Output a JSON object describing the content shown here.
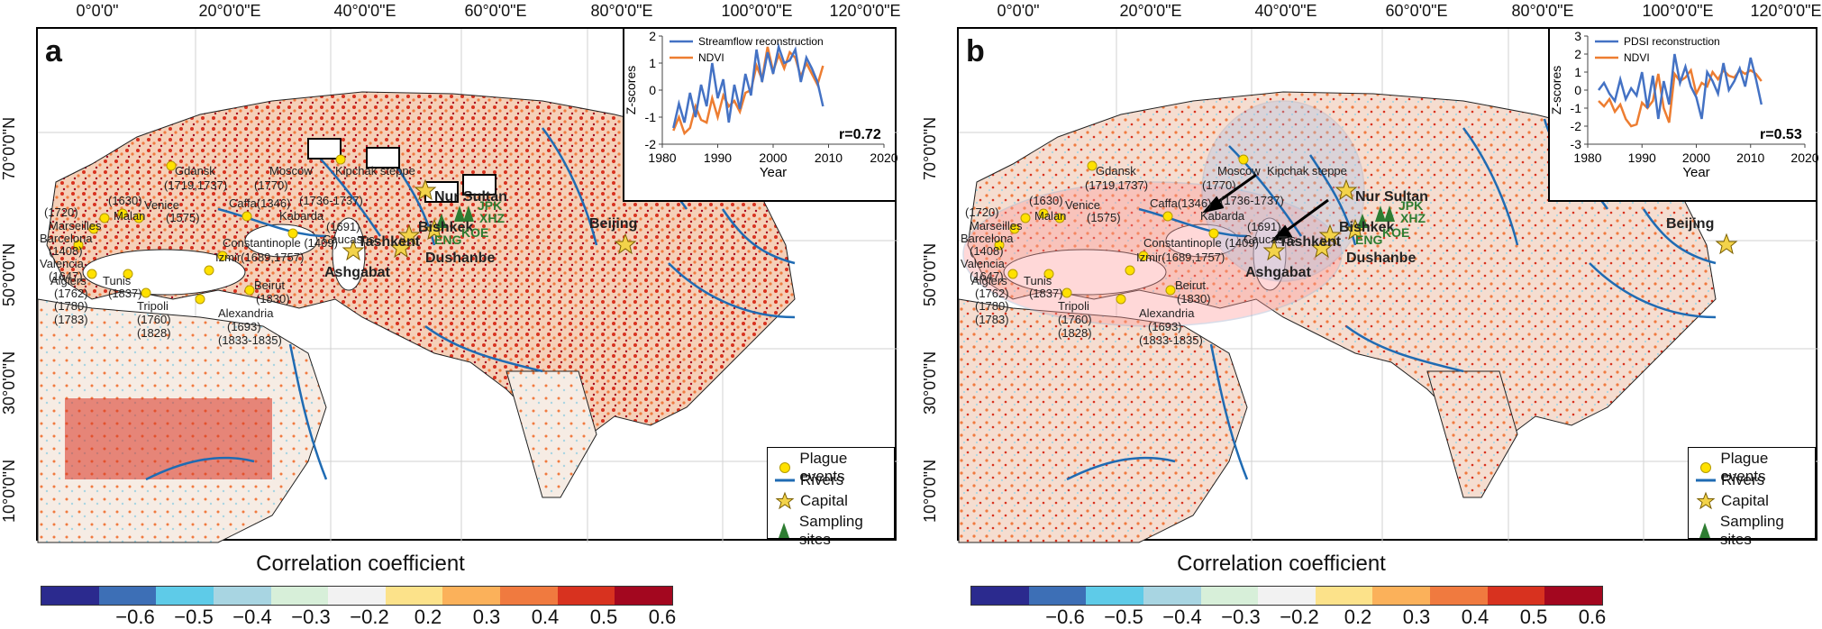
{
  "colors": {
    "colorbar": [
      "#2b2a8e",
      "#3d6fb6",
      "#5ecbe8",
      "#a8d5e2",
      "#d7efd9",
      "#f2f2f2",
      "#fce28a",
      "#fbb15a",
      "#f07a3f",
      "#d8321f",
      "#a3071f"
    ],
    "streamflow_line": "#4472c4",
    "ndvi_line": "#ed7d31",
    "river": "#1f6bb3",
    "plague_dot": "#ffe100",
    "capital_star": "#f3d34a",
    "site_marker": "#2e7d32"
  },
  "axes": {
    "longitude_labels": [
      "0°0'0\"",
      "20°0'0\"E",
      "40°0'0\"E",
      "60°0'0\"E",
      "80°0'0\"E",
      "100°0'0\"E",
      "120°0'0\"E"
    ],
    "latitude_labels": [
      "70°0'0\"N",
      "50°0'0\"N",
      "30°0'0\"N",
      "10°0'0\"N"
    ]
  },
  "legend": {
    "plague": "Plague events",
    "rivers": "Rivers",
    "capital": "Capital",
    "sites": "Sampling sites"
  },
  "colorbar": {
    "title": "Correlation coefficient",
    "ticks": [
      "−0.6",
      "−0.5",
      "−0.4",
      "−0.3",
      "−0.2",
      "0.2",
      "0.3",
      "0.4",
      "0.5",
      "0.6"
    ]
  },
  "panels": [
    {
      "letter": "a",
      "inset_legend": [
        "Streamflow reconstruction",
        "NDVI"
      ],
      "inset_r": "r=0.72",
      "inset_xlabel": "Year",
      "inset_ylabel": "Z-scores"
    },
    {
      "letter": "b",
      "inset_legend": [
        "PDSI reconstruction",
        "NDVI"
      ],
      "inset_r": "r=0.53",
      "inset_xlabel": "Year",
      "inset_ylabel": "Z-scores"
    }
  ],
  "places": {
    "cities": [
      "Gdansk",
      "(1719,1737)",
      "Moscow",
      "(1770)",
      "Kipchak steppe",
      "(1630)",
      "Venice",
      "(1575)",
      "Malan",
      "Caffa(1346)",
      "(1736-1737)",
      "Kabarda",
      "(1720)",
      "Marseilles",
      "Barcelona",
      "(1408)",
      "Valencia",
      "(1647)",
      "(1691)",
      "Caucasus",
      "Constantinople (1409)",
      "Izmir(1689,1757)",
      "Algiers",
      "(1762)",
      "(1780)",
      "(1783)",
      "Tunis",
      "(1837)",
      "Tripoli",
      "(1760)",
      "(1828)",
      "Alexandria",
      "(1693)",
      "(1833-1835)",
      "Beirut",
      "(1830)"
    ],
    "capitals": [
      "Nur Sultan",
      "Bishkek",
      "Tashkent",
      "Dushanbe",
      "Ashgabat",
      "Beijing"
    ],
    "sites": [
      "JPK",
      "XHZ",
      "ENG",
      "KOE"
    ]
  },
  "chart_data": [
    {
      "type": "line",
      "x": [
        1982,
        1983,
        1984,
        1985,
        1986,
        1987,
        1988,
        1989,
        1990,
        1991,
        1992,
        1993,
        1994,
        1995,
        1996,
        1997,
        1998,
        1999,
        2000,
        2001,
        2002,
        2003,
        2004,
        2005,
        2006,
        2007,
        2008,
        2009
      ],
      "series": [
        {
          "name": "Streamflow reconstruction",
          "values": [
            -1.4,
            -0.5,
            -1.2,
            -0.1,
            -1.0,
            0.2,
            -0.6,
            1.0,
            -0.3,
            0.4,
            -1.2,
            0.2,
            -0.7,
            0.6,
            -0.2,
            1.5,
            0.3,
            1.4,
            0.6,
            1.6,
            1.0,
            1.1,
            1.5,
            0.3,
            1.2,
            0.8,
            0.3,
            -0.6
          ]
        },
        {
          "name": "NDVI",
          "values": [
            -1.5,
            -1.0,
            -1.6,
            -1.4,
            -0.6,
            -1.1,
            -1.2,
            -0.3,
            -1.0,
            -0.2,
            -0.6,
            -0.4,
            -0.8,
            -0.1,
            0.0,
            0.9,
            0.4,
            1.6,
            0.7,
            1.3,
            0.8,
            1.4,
            1.2,
            0.5,
            1.0,
            0.6,
            0.2,
            0.9
          ]
        }
      ],
      "xlim": [
        1980,
        2020
      ],
      "ylim": [
        -2,
        2
      ],
      "xticks": [
        1980,
        1990,
        2000,
        2010,
        2020
      ],
      "yticks": [
        -2,
        -1,
        0,
        1,
        2
      ],
      "xlabel": "Year",
      "ylabel": "Z-scores",
      "annotation": "r=0.72"
    },
    {
      "type": "line",
      "x": [
        1982,
        1983,
        1984,
        1985,
        1986,
        1987,
        1988,
        1989,
        1990,
        1991,
        1992,
        1993,
        1994,
        1995,
        1996,
        1997,
        1998,
        1999,
        2000,
        2001,
        2002,
        2003,
        2004,
        2005,
        2006,
        2007,
        2008,
        2009,
        2010,
        2011,
        2012
      ],
      "series": [
        {
          "name": "PDSI reconstruction",
          "values": [
            0.0,
            0.4,
            -0.2,
            -0.6,
            0.6,
            -0.5,
            0.1,
            -0.3,
            1.0,
            -1.0,
            0.8,
            -1.6,
            0.5,
            -0.8,
            2.0,
            0.4,
            1.3,
            0.2,
            -0.4,
            -1.6,
            1.0,
            0.5,
            -0.2,
            1.5,
            0.0,
            0.5,
            1.2,
            0.2,
            1.8,
            0.6,
            -0.8
          ]
        },
        {
          "name": "NDVI",
          "values": [
            -0.6,
            -0.9,
            -0.5,
            -1.2,
            -0.8,
            -1.6,
            -2.0,
            -1.9,
            -0.7,
            -1.0,
            -0.6,
            0.9,
            -1.0,
            -1.8,
            0.9,
            0.5,
            0.7,
            1.1,
            -0.2,
            0.4,
            0.2,
            1.0,
            0.6,
            1.1,
            0.8,
            0.7,
            1.1,
            0.9,
            1.1,
            0.9,
            0.5
          ]
        }
      ],
      "xlim": [
        1980,
        2020
      ],
      "ylim": [
        -3,
        3
      ],
      "xticks": [
        1980,
        1990,
        2000,
        2010,
        2020
      ],
      "yticks": [
        -3,
        -2,
        -1,
        0,
        1,
        2,
        3
      ],
      "xlabel": "Year",
      "ylabel": "Z-scores",
      "annotation": "r=0.53"
    }
  ]
}
